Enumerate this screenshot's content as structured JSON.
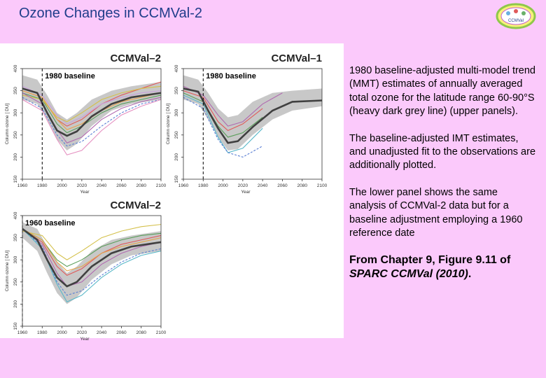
{
  "slide": {
    "title": "Ozone Changes in CCMVal-2",
    "logo_text": "CCMVal",
    "paragraphs": [
      "1980 baseline-adjusted multi-model trend (MMT) estimates of annually averaged total ozone for the latitude range 60-90°S (heavy dark grey line) (upper panels).",
      "The baseline-adjusted IMT estimates, and unadjusted fit to the observations are additionally plotted.",
      "The lower panel shows the same analysis of CCMVal-2 data but for a baseline adjustment employing a 1960 reference date"
    ],
    "citation_plain": "From Chapter 9, Figure 9.11 of ",
    "citation_italic": "SPARC CCMVal (2010)",
    "citation_end": "."
  },
  "chart_data": [
    {
      "type": "line",
      "panel_title": "CCMVal–2",
      "baseline_label": "1980 baseline",
      "baseline_year": 1980,
      "xlabel": "Year",
      "ylabel": "Column   ozone [ DU]",
      "xlim": [
        1960,
        2100
      ],
      "ylim": [
        150,
        400
      ],
      "xticks": [
        1960,
        1980,
        2000,
        2020,
        2040,
        2060,
        2080,
        2100
      ],
      "yticks": [
        150,
        200,
        250,
        300,
        350,
        400
      ],
      "band": {
        "color": "#c8c8c8",
        "x": [
          1960,
          1975,
          1985,
          1995,
          2005,
          2015,
          2030,
          2050,
          2070,
          2100
        ],
        "upper": [
          385,
          375,
          340,
          300,
          285,
          300,
          330,
          350,
          360,
          370
        ],
        "lower": [
          330,
          320,
          285,
          240,
          215,
          230,
          270,
          305,
          320,
          330
        ]
      },
      "mmt": {
        "color": "#404040",
        "x": [
          1960,
          1975,
          1985,
          1995,
          2005,
          2015,
          2030,
          2050,
          2070,
          2100
        ],
        "y": [
          355,
          345,
          300,
          260,
          248,
          258,
          292,
          320,
          335,
          345
        ]
      },
      "models": [
        {
          "color": "#e05a5a",
          "dash": false,
          "x": [
            1960,
            1980,
            1995,
            2005,
            2020,
            2040,
            2060,
            2080,
            2100
          ],
          "y": [
            350,
            335,
            285,
            270,
            285,
            320,
            340,
            355,
            370
          ]
        },
        {
          "color": "#5a9e5a",
          "dash": false,
          "x": [
            1960,
            1980,
            1995,
            2005,
            2020,
            2040,
            2060,
            2080,
            2100
          ],
          "y": [
            345,
            330,
            275,
            255,
            270,
            300,
            320,
            330,
            340
          ]
        },
        {
          "color": "#c9a0dc",
          "dash": false,
          "x": [
            1960,
            1980,
            1995,
            2005,
            2020,
            2040,
            2060,
            2080,
            2100
          ],
          "y": [
            360,
            340,
            295,
            275,
            290,
            320,
            335,
            345,
            350
          ]
        },
        {
          "color": "#d4c04a",
          "dash": false,
          "x": [
            1960,
            1980,
            1995,
            2005,
            2020,
            2040,
            2060,
            2080,
            2100
          ],
          "y": [
            340,
            330,
            290,
            280,
            300,
            330,
            345,
            355,
            360
          ]
        },
        {
          "color": "#5a7fd4",
          "dash": true,
          "x": [
            1960,
            1980,
            1995,
            2005,
            2020,
            2040,
            2060,
            2080,
            2100
          ],
          "y": [
            335,
            310,
            250,
            225,
            235,
            270,
            300,
            320,
            330
          ]
        },
        {
          "color": "#b06ab0",
          "dash": false,
          "x": [
            1960,
            1980,
            1995,
            2005,
            2020,
            2040,
            2060,
            2080,
            2100
          ],
          "y": [
            345,
            320,
            262,
            232,
            245,
            285,
            310,
            325,
            335
          ]
        },
        {
          "color": "#e5a54a",
          "dash": false,
          "x": [
            1960,
            1980,
            1995,
            2005,
            2020,
            2040,
            2060,
            2080,
            2100
          ],
          "y": [
            350,
            335,
            285,
            262,
            275,
            305,
            325,
            335,
            345
          ]
        },
        {
          "color": "#e58fc0",
          "dash": false,
          "x": [
            1960,
            1980,
            1995,
            2005,
            2020,
            2040,
            2060,
            2080,
            2100
          ],
          "y": [
            330,
            305,
            240,
            205,
            215,
            260,
            295,
            315,
            330
          ]
        }
      ]
    },
    {
      "type": "line",
      "panel_title": "CCMVal–1",
      "baseline_label": "1980 baseline",
      "baseline_year": 1980,
      "xlabel": "Year",
      "ylabel": "Column   ozone [ DU]",
      "xlim": [
        1960,
        2100
      ],
      "ylim": [
        150,
        400
      ],
      "xticks": [
        1960,
        1980,
        2000,
        2020,
        2040,
        2060,
        2080,
        2100
      ],
      "yticks": [
        150,
        200,
        250,
        300,
        350,
        400
      ],
      "band": {
        "color": "#c8c8c8",
        "x": [
          1960,
          1975,
          1985,
          1995,
          2005,
          2015,
          2030,
          2050,
          2070,
          2100
        ],
        "upper": [
          385,
          375,
          345,
          310,
          290,
          295,
          325,
          345,
          350,
          355
        ],
        "lower": [
          330,
          320,
          285,
          245,
          215,
          218,
          250,
          285,
          305,
          315
        ]
      },
      "mmt": {
        "color": "#404040",
        "x": [
          1960,
          1975,
          1985,
          1995,
          2005,
          2015,
          2030,
          2050,
          2070,
          2100
        ],
        "y": [
          355,
          348,
          305,
          265,
          232,
          236,
          268,
          305,
          325,
          328
        ]
      },
      "models": [
        {
          "color": "#e05a5a",
          "dash": false,
          "x": [
            1960,
            1980,
            1995,
            2005,
            2020,
            2040
          ],
          "y": [
            350,
            335,
            280,
            260,
            275,
            310
          ]
        },
        {
          "color": "#5ab8c8",
          "dash": false,
          "x": [
            1960,
            1980,
            1995,
            2005,
            2020,
            2040
          ],
          "y": [
            340,
            320,
            245,
            210,
            220,
            265
          ]
        },
        {
          "color": "#5a9e5a",
          "dash": false,
          "x": [
            1960,
            1980,
            1995,
            2005,
            2020,
            2040
          ],
          "y": [
            345,
            325,
            270,
            245,
            255,
            290
          ]
        },
        {
          "color": "#5a7fd4",
          "dash": true,
          "x": [
            1960,
            1980,
            1995,
            2005,
            2020,
            2040
          ],
          "y": [
            335,
            310,
            240,
            210,
            200,
            225
          ]
        },
        {
          "color": "#b06ab0",
          "dash": false,
          "x": [
            1960,
            1980,
            1995,
            2005,
            2020,
            2040,
            2060
          ],
          "y": [
            360,
            340,
            295,
            270,
            280,
            320,
            345
          ]
        }
      ]
    },
    {
      "type": "line",
      "panel_title": "CCMVal–2",
      "baseline_label": "1960 baseline",
      "baseline_year": 1960,
      "xlabel": "Year",
      "ylabel": "Column   ozone [ DU]",
      "xlim": [
        1960,
        2100
      ],
      "ylim": [
        150,
        400
      ],
      "xticks": [
        1960,
        1980,
        2000,
        2020,
        2040,
        2060,
        2080,
        2100
      ],
      "yticks": [
        150,
        200,
        250,
        300,
        350,
        400
      ],
      "band": {
        "color": "#c8c8c8",
        "x": [
          1960,
          1975,
          1985,
          1995,
          2005,
          2015,
          2030,
          2050,
          2070,
          2100
        ],
        "upper": [
          385,
          370,
          330,
          295,
          270,
          285,
          320,
          345,
          355,
          365
        ],
        "lower": [
          350,
          320,
          270,
          225,
          200,
          215,
          255,
          290,
          310,
          320
        ]
      },
      "mmt": {
        "color": "#404040",
        "x": [
          1960,
          1975,
          1985,
          1995,
          2005,
          2015,
          2030,
          2050,
          2070,
          2100
        ],
        "y": [
          370,
          345,
          300,
          260,
          240,
          250,
          285,
          315,
          330,
          340
        ]
      },
      "models": [
        {
          "color": "#e05a5a",
          "dash": false,
          "x": [
            1960,
            1980,
            1995,
            2005,
            2020,
            2040,
            2060,
            2080,
            2100
          ],
          "y": [
            370,
            340,
            285,
            265,
            280,
            315,
            335,
            345,
            355
          ]
        },
        {
          "color": "#5a9e5a",
          "dash": false,
          "x": [
            1960,
            1980,
            1995,
            2005,
            2020,
            2040,
            2060,
            2080,
            2100
          ],
          "y": [
            370,
            345,
            300,
            285,
            300,
            330,
            345,
            355,
            360
          ]
        },
        {
          "color": "#d4c04a",
          "dash": false,
          "x": [
            1960,
            1980,
            1995,
            2005,
            2020,
            2040,
            2060,
            2080,
            2100
          ],
          "y": [
            365,
            355,
            315,
            300,
            320,
            350,
            365,
            375,
            380
          ]
        },
        {
          "color": "#5a7fd4",
          "dash": true,
          "x": [
            1960,
            1980,
            1995,
            2005,
            2020,
            2040,
            2060,
            2080,
            2100
          ],
          "y": [
            370,
            330,
            250,
            220,
            230,
            265,
            295,
            315,
            325
          ]
        },
        {
          "color": "#5ab8c8",
          "dash": false,
          "x": [
            1960,
            1980,
            1995,
            2005,
            2020,
            2040,
            2060,
            2080,
            2100
          ],
          "y": [
            370,
            325,
            245,
            205,
            220,
            260,
            290,
            310,
            320
          ]
        },
        {
          "color": "#b06ab0",
          "dash": false,
          "x": [
            1960,
            1980,
            1995,
            2005,
            2020,
            2040,
            2060,
            2080,
            2100
          ],
          "y": [
            370,
            335,
            270,
            240,
            250,
            290,
            315,
            330,
            340
          ]
        },
        {
          "color": "#e5a54a",
          "dash": false,
          "x": [
            1960,
            1980,
            1995,
            2005,
            2020,
            2040,
            2060,
            2080,
            2100
          ],
          "y": [
            370,
            345,
            295,
            275,
            285,
            315,
            330,
            340,
            350
          ]
        }
      ]
    }
  ]
}
